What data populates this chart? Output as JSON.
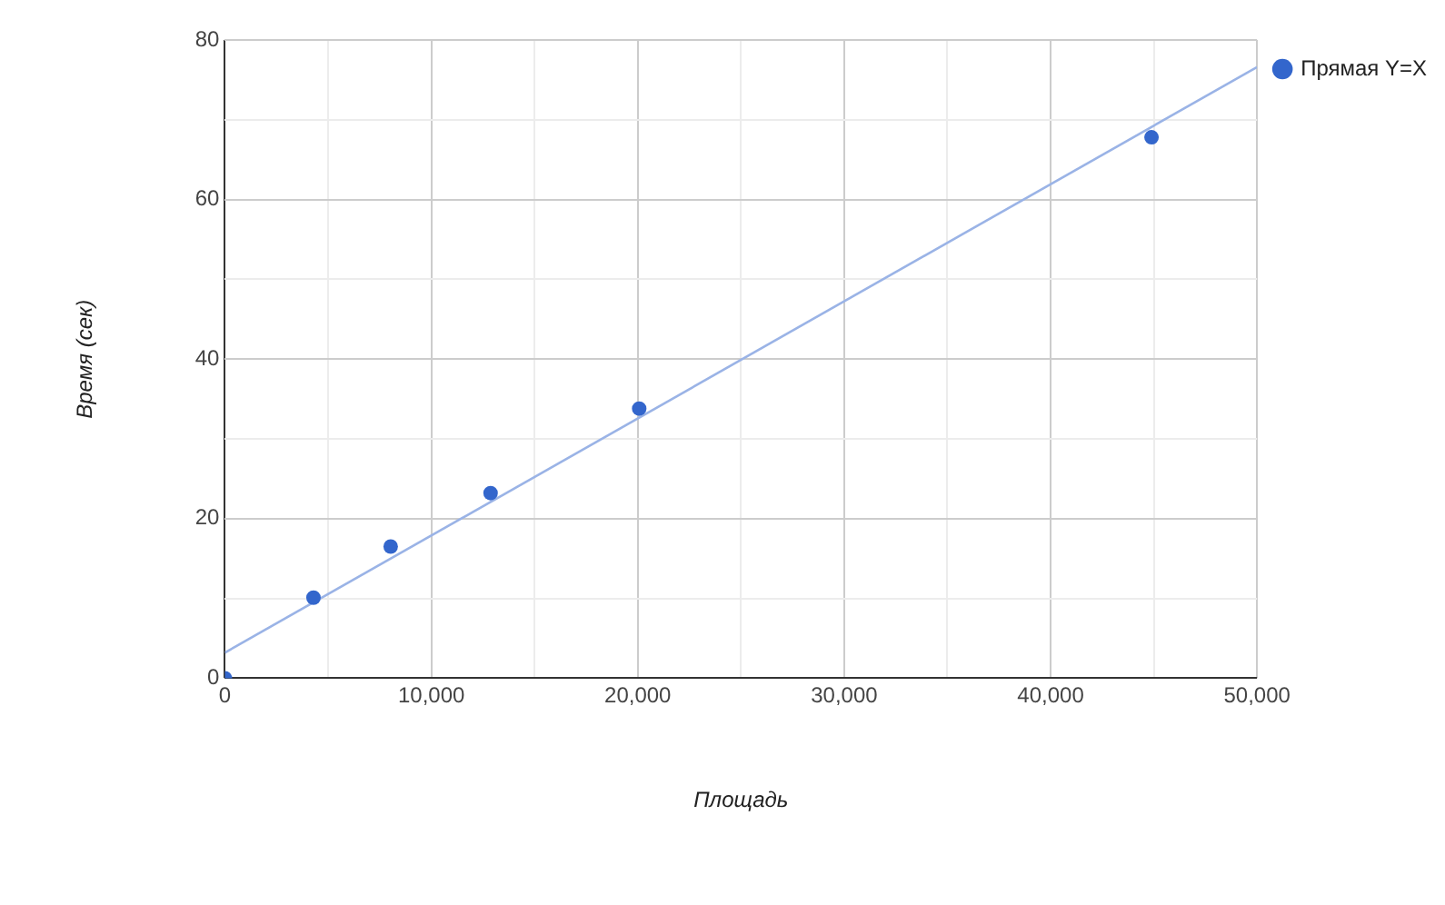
{
  "chart_data": {
    "type": "scatter",
    "xlabel": "Площадь",
    "ylabel": "Время (сек)",
    "series": [
      {
        "name": "Прямая Y=X",
        "color": "#3366cc",
        "x": [
          0,
          4290,
          8030,
          12870,
          20070,
          44890
        ],
        "values": [
          0,
          10.1,
          16.5,
          23.2,
          33.8,
          67.8
        ]
      },
      {
        "type": "line",
        "color": "#9ab3e6",
        "x": [
          0,
          50000
        ],
        "values": [
          3.2,
          76.6
        ],
        "marker": "none"
      }
    ],
    "xlim": [
      0,
      50000
    ],
    "xticks": [
      0,
      {
        "value": 5000,
        "label": null
      },
      {
        "value": 10000,
        "label": "10,000"
      },
      {
        "value": 15000,
        "label": null
      },
      {
        "value": 20000,
        "label": "20,000"
      },
      {
        "value": 25000,
        "label": null
      },
      {
        "value": 30000,
        "label": "30,000"
      },
      {
        "value": 35000,
        "label": null
      },
      {
        "value": 40000,
        "label": "40,000"
      },
      {
        "value": 45000,
        "label": null
      },
      {
        "value": 50000,
        "label": "50,000"
      }
    ],
    "ylim": [
      0,
      80
    ],
    "yticks": [
      0,
      {
        "value": 10,
        "label": null
      },
      20,
      {
        "value": 30,
        "label": null
      },
      40,
      {
        "value": 50,
        "label": null
      },
      60,
      {
        "value": 70,
        "label": null
      },
      80
    ],
    "grid": true,
    "legend": "top right",
    "marker": "circle"
  }
}
